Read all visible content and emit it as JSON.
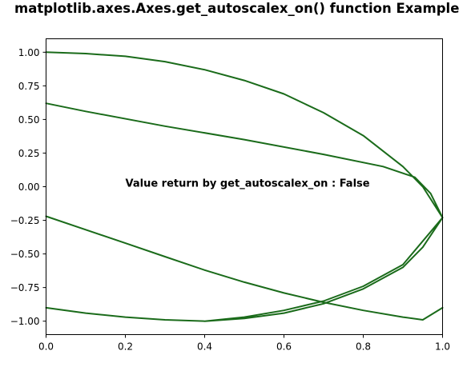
{
  "chart_data": {
    "type": "line",
    "title": "matplotlib.axes.Axes.get_autoscalex_on() function Example",
    "xlabel": "",
    "ylabel": "",
    "xlim": [
      0.0,
      1.0
    ],
    "ylim": [
      -1.1,
      1.1
    ],
    "xticks": [
      "0.0",
      "0.2",
      "0.4",
      "0.6",
      "0.8",
      "1.0"
    ],
    "xtick_values": [
      0.0,
      0.2,
      0.4,
      0.6,
      0.8,
      1.0
    ],
    "yticks": [
      "1.00",
      "0.75",
      "0.50",
      "0.25",
      "0.00",
      "−0.25",
      "−0.50",
      "−0.75",
      "−1.00"
    ],
    "ytick_values": [
      1.0,
      0.75,
      0.5,
      0.25,
      0.0,
      -0.25,
      -0.5,
      -0.75,
      -1.0
    ],
    "grid": false,
    "series": [
      {
        "color": "#1a6b1a",
        "x": [
          0.0,
          0.1,
          0.2,
          0.3,
          0.4,
          0.5,
          0.6,
          0.7,
          0.8,
          0.9,
          0.95,
          1.0,
          0.95,
          0.9,
          0.8,
          0.7,
          0.6,
          0.5,
          0.4,
          0.3,
          0.2,
          0.1,
          0.0,
          0.05,
          0.1,
          0.2,
          0.3,
          0.4,
          0.5,
          0.6,
          0.7,
          0.8,
          0.9,
          1.0,
          0.97,
          0.93,
          0.85,
          0.7,
          0.5,
          0.3,
          0.1,
          0.0
        ],
        "y": [
          1.0,
          0.99,
          0.97,
          0.93,
          0.87,
          0.79,
          0.69,
          0.55,
          0.38,
          0.15,
          -0.0,
          -0.23,
          -0.45,
          -0.6,
          -0.76,
          -0.87,
          -0.94,
          -0.98,
          -1.0,
          -0.99,
          -0.97,
          -0.94,
          -0.9,
          -0.92,
          -0.94,
          -0.97,
          -0.99,
          -1.0,
          -0.97,
          -0.92,
          -0.85,
          -0.74,
          -0.58,
          -0.23,
          -0.05,
          0.07,
          0.15,
          0.24,
          0.35,
          0.45,
          0.56,
          0.62
        ]
      },
      {
        "color": "#1a6b1a",
        "x": [
          0.0,
          0.1,
          0.2,
          0.3,
          0.4,
          0.5,
          0.6,
          0.7,
          0.8,
          0.9,
          0.95,
          1.0
        ],
        "y": [
          -0.22,
          -0.32,
          -0.42,
          -0.52,
          -0.62,
          -0.71,
          -0.79,
          -0.86,
          -0.92,
          -0.97,
          -0.99,
          -0.9
        ]
      }
    ],
    "annotations": [
      {
        "text": "Value return by get_autoscalex_on : False",
        "x": 0.2,
        "y": 0.0
      }
    ]
  }
}
